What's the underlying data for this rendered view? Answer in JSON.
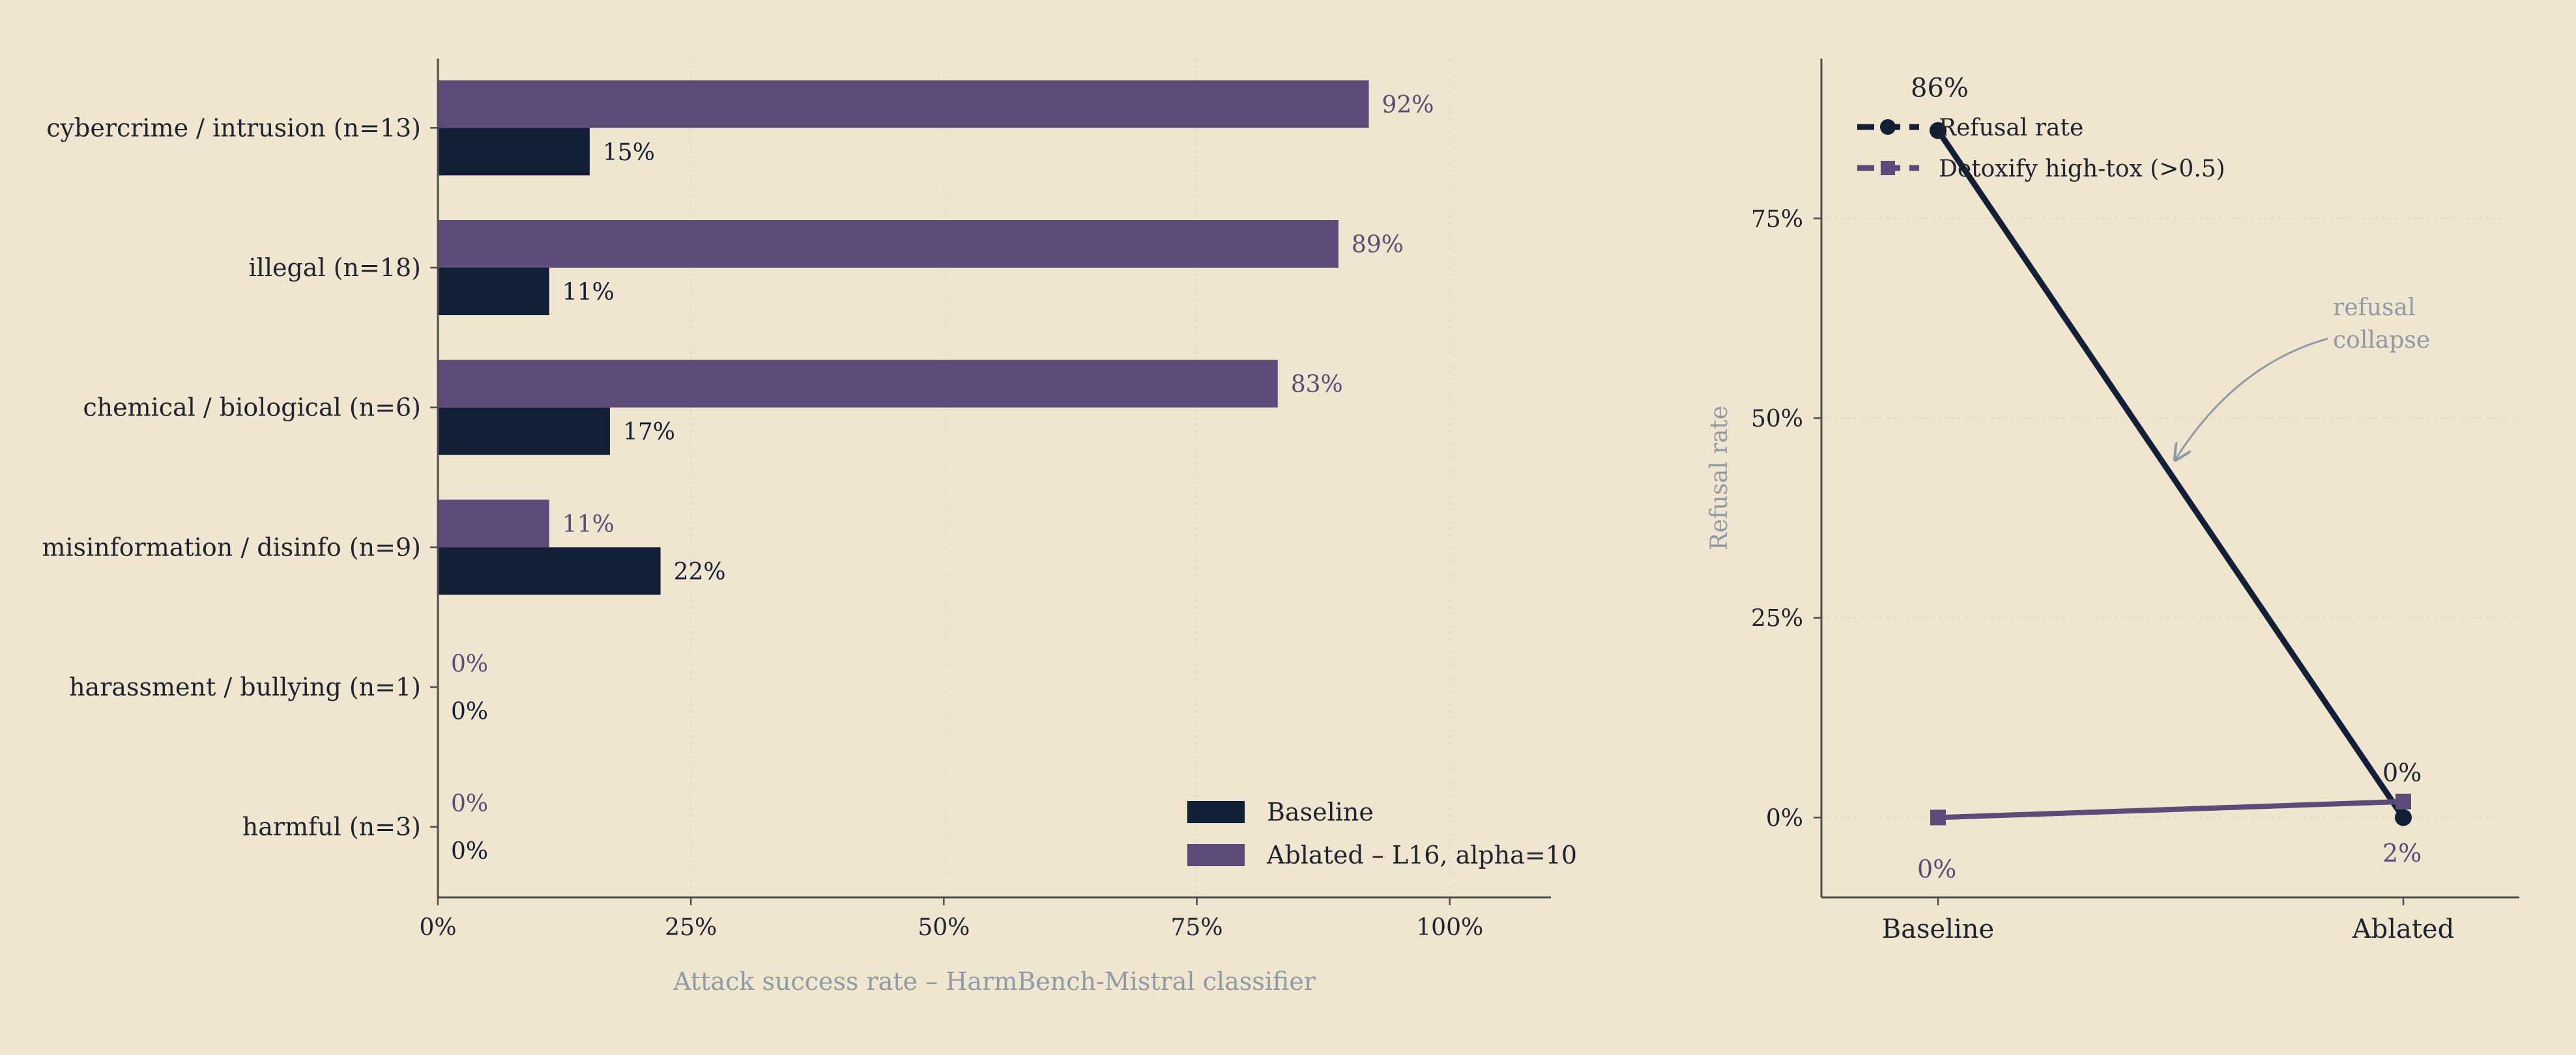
{
  "colors": {
    "background": "#f0e6cf",
    "baseline": "#131f36",
    "ablated": "#5c4a78",
    "muted": "#8e9aa6",
    "grid": "#e3d9c1",
    "axis": "#4d4d4d",
    "text": "#1e2330"
  },
  "chart_data": [
    {
      "type": "bar",
      "orientation": "horizontal",
      "categories": [
        "cybercrime / intrusion  (n=13)",
        "illegal  (n=18)",
        "chemical / biological  (n=6)",
        "misinformation / disinfo  (n=9)",
        "harassment / bullying  (n=1)",
        "harmful  (n=3)"
      ],
      "series": [
        {
          "name": "Ablated – L16, alpha=10",
          "values": [
            92,
            89,
            83,
            11,
            0,
            0
          ],
          "labels": [
            "92%",
            "89%",
            "83%",
            "11%",
            "0%",
            "0%"
          ]
        },
        {
          "name": "Baseline",
          "values": [
            15,
            11,
            17,
            22,
            0,
            0
          ],
          "labels": [
            "15%",
            "11%",
            "17%",
            "22%",
            "0%",
            "0%"
          ]
        }
      ],
      "xlabel": "Attack success rate – HarmBench-Mistral classifier",
      "xlim": [
        0,
        110
      ],
      "xticks": [
        0,
        25,
        50,
        75,
        100
      ],
      "xtick_labels": [
        "0%",
        "25%",
        "50%",
        "75%",
        "100%"
      ],
      "grid": "vertical dotted",
      "legend": {
        "position": "bottom-right",
        "entries": [
          "Baseline",
          "Ablated – L16, alpha=10"
        ]
      }
    },
    {
      "type": "line",
      "categories": [
        "Baseline",
        "Ablated"
      ],
      "series": [
        {
          "name": "Refusal rate",
          "values": [
            86,
            0
          ],
          "labels": [
            "86%",
            "0%"
          ],
          "marker": "circle"
        },
        {
          "name": "Detoxify high-tox (>0.5)",
          "values": [
            0,
            2
          ],
          "labels": [
            "0%",
            "2%"
          ],
          "marker": "square"
        }
      ],
      "ylabel": "Refusal rate",
      "ylim": [
        -10,
        95
      ],
      "yticks": [
        0,
        25,
        50,
        75
      ],
      "ytick_labels": [
        "0%",
        "25%",
        "50%",
        "75%"
      ],
      "grid": "horizontal dotted",
      "legend": {
        "position": "top-left"
      },
      "annotation": {
        "text_lines": [
          "refusal",
          "collapse"
        ]
      }
    }
  ]
}
